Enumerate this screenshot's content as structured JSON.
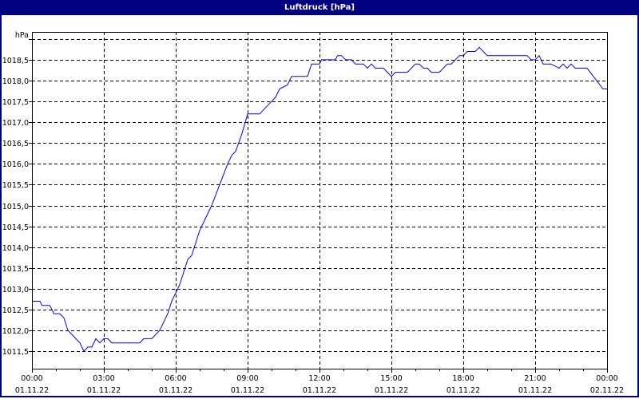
{
  "window": {
    "title": "Luftdruck [hPa]",
    "title_bar_color": "#000080"
  },
  "chart_data": {
    "type": "line",
    "title": "Luftdruck [hPa]",
    "ylabel": "hPa",
    "xlabel": "",
    "ylim": [
      1011.08,
      1019.17
    ],
    "xlim": [
      "01.11.22 00:00",
      "02.11.22 00:00"
    ],
    "grid": true,
    "line_color": "#0000ff",
    "y_ticks": [
      1011.5,
      1012.0,
      1012.5,
      1013.0,
      1013.5,
      1014.0,
      1014.5,
      1015.0,
      1015.5,
      1016.0,
      1016.5,
      1017.0,
      1017.5,
      1018.0,
      1018.5,
      1019.0
    ],
    "y_tick_labels": [
      "1011,5",
      "1012,0",
      "1012,5",
      "1013,0",
      "1013,5",
      "1014,0",
      "1014,5",
      "1015,0",
      "1015,5",
      "1016,0",
      "1016,5",
      "1017,0",
      "1017,5",
      "1018,0",
      "1018,5",
      ""
    ],
    "x_ticks": [
      {
        "time": "00:00",
        "date": "01.11.22"
      },
      {
        "time": "03:00",
        "date": "01.11.22"
      },
      {
        "time": "06:00",
        "date": "01.11.22"
      },
      {
        "time": "09:00",
        "date": "01.11.22"
      },
      {
        "time": "12:00",
        "date": "01.11.22"
      },
      {
        "time": "15:00",
        "date": "01.11.22"
      },
      {
        "time": "18:00",
        "date": "01.11.22"
      },
      {
        "time": "21:00",
        "date": "01.11.22"
      },
      {
        "time": "00:00",
        "date": "02.11.22"
      }
    ],
    "series": [
      {
        "points": [
          [
            "01.11.22 00:00",
            1012.7
          ],
          [
            "01.11.22 00:20",
            1012.7
          ],
          [
            "01.11.22 00:25",
            1012.6
          ],
          [
            "01.11.22 00:45",
            1012.6
          ],
          [
            "01.11.22 00:55",
            1012.4
          ],
          [
            "01.11.22 01:10",
            1012.4
          ],
          [
            "01.11.22 01:20",
            1012.3
          ],
          [
            "01.11.22 01:30",
            1012.0
          ],
          [
            "01.11.22 01:50",
            1011.8
          ],
          [
            "01.11.22 02:00",
            1011.7
          ],
          [
            "01.11.22 02:10",
            1011.5
          ],
          [
            "01.11.22 02:20",
            1011.6
          ],
          [
            "01.11.22 02:30",
            1011.6
          ],
          [
            "01.11.22 02:40",
            1011.8
          ],
          [
            "01.11.22 02:50",
            1011.7
          ],
          [
            "01.11.22 03:00",
            1011.8
          ],
          [
            "01.11.22 03:10",
            1011.8
          ],
          [
            "01.11.22 03:20",
            1011.7
          ],
          [
            "01.11.22 04:30",
            1011.7
          ],
          [
            "01.11.22 04:40",
            1011.8
          ],
          [
            "01.11.22 05:00",
            1011.8
          ],
          [
            "01.11.22 05:20",
            1012.0
          ],
          [
            "01.11.22 05:40",
            1012.4
          ],
          [
            "01.11.22 05:50",
            1012.7
          ],
          [
            "01.11.22 06:00",
            1012.9
          ],
          [
            "01.11.22 06:10",
            1013.1
          ],
          [
            "01.11.22 06:30",
            1013.7
          ],
          [
            "01.11.22 06:40",
            1013.8
          ],
          [
            "01.11.22 07:00",
            1014.4
          ],
          [
            "01.11.22 07:30",
            1015.0
          ],
          [
            "01.11.22 07:50",
            1015.5
          ],
          [
            "01.11.22 08:10",
            1016.0
          ],
          [
            "01.11.22 08:20",
            1016.2
          ],
          [
            "01.11.22 08:30",
            1016.3
          ],
          [
            "01.11.22 08:45",
            1016.7
          ],
          [
            "01.11.22 09:00",
            1017.2
          ],
          [
            "01.11.22 09:30",
            1017.2
          ],
          [
            "01.11.22 09:50",
            1017.4
          ],
          [
            "01.11.22 10:10",
            1017.6
          ],
          [
            "01.11.22 10:20",
            1017.8
          ],
          [
            "01.11.22 10:40",
            1017.9
          ],
          [
            "01.11.22 10:50",
            1018.1
          ],
          [
            "01.11.22 11:30",
            1018.1
          ],
          [
            "01.11.22 11:40",
            1018.4
          ],
          [
            "01.11.22 12:00",
            1018.4
          ],
          [
            "01.11.22 12:05",
            1018.5
          ],
          [
            "01.11.22 12:40",
            1018.5
          ],
          [
            "01.11.22 12:45",
            1018.6
          ],
          [
            "01.11.22 12:55",
            1018.6
          ],
          [
            "01.11.22 13:05",
            1018.5
          ],
          [
            "01.11.22 13:20",
            1018.5
          ],
          [
            "01.11.22 13:30",
            1018.4
          ],
          [
            "01.11.22 13:50",
            1018.4
          ],
          [
            "01.11.22 14:00",
            1018.3
          ],
          [
            "01.11.22 14:10",
            1018.4
          ],
          [
            "01.11.22 14:20",
            1018.3
          ],
          [
            "01.11.22 14:40",
            1018.3
          ],
          [
            "01.11.22 14:50",
            1018.2
          ],
          [
            "01.11.22 15:00",
            1018.1
          ],
          [
            "01.11.22 15:10",
            1018.2
          ],
          [
            "01.11.22 15:40",
            1018.2
          ],
          [
            "01.11.22 16:00",
            1018.4
          ],
          [
            "01.11.22 16:10",
            1018.4
          ],
          [
            "01.11.22 16:20",
            1018.3
          ],
          [
            "01.11.22 16:30",
            1018.3
          ],
          [
            "01.11.22 16:40",
            1018.2
          ],
          [
            "01.11.22 17:00",
            1018.2
          ],
          [
            "01.11.22 17:20",
            1018.4
          ],
          [
            "01.11.22 17:30",
            1018.4
          ],
          [
            "01.11.22 17:50",
            1018.6
          ],
          [
            "01.11.22 18:00",
            1018.6
          ],
          [
            "01.11.22 18:10",
            1018.7
          ],
          [
            "01.11.22 18:30",
            1018.7
          ],
          [
            "01.11.22 18:40",
            1018.8
          ],
          [
            "01.11.22 19:00",
            1018.6
          ],
          [
            "01.11.22 20:40",
            1018.6
          ],
          [
            "01.11.22 20:50",
            1018.5
          ],
          [
            "01.11.22 21:00",
            1018.5
          ],
          [
            "01.11.22 21:10",
            1018.6
          ],
          [
            "01.11.22 21:20",
            1018.4
          ],
          [
            "01.11.22 21:40",
            1018.4
          ],
          [
            "01.11.22 22:00",
            1018.3
          ],
          [
            "01.11.22 22:10",
            1018.4
          ],
          [
            "01.11.22 22:20",
            1018.3
          ],
          [
            "01.11.22 22:30",
            1018.4
          ],
          [
            "01.11.22 22:40",
            1018.3
          ],
          [
            "01.11.22 23:10",
            1018.3
          ],
          [
            "01.11.22 23:50",
            1017.8
          ],
          [
            "02.11.22 00:00",
            1017.8
          ]
        ]
      }
    ]
  }
}
